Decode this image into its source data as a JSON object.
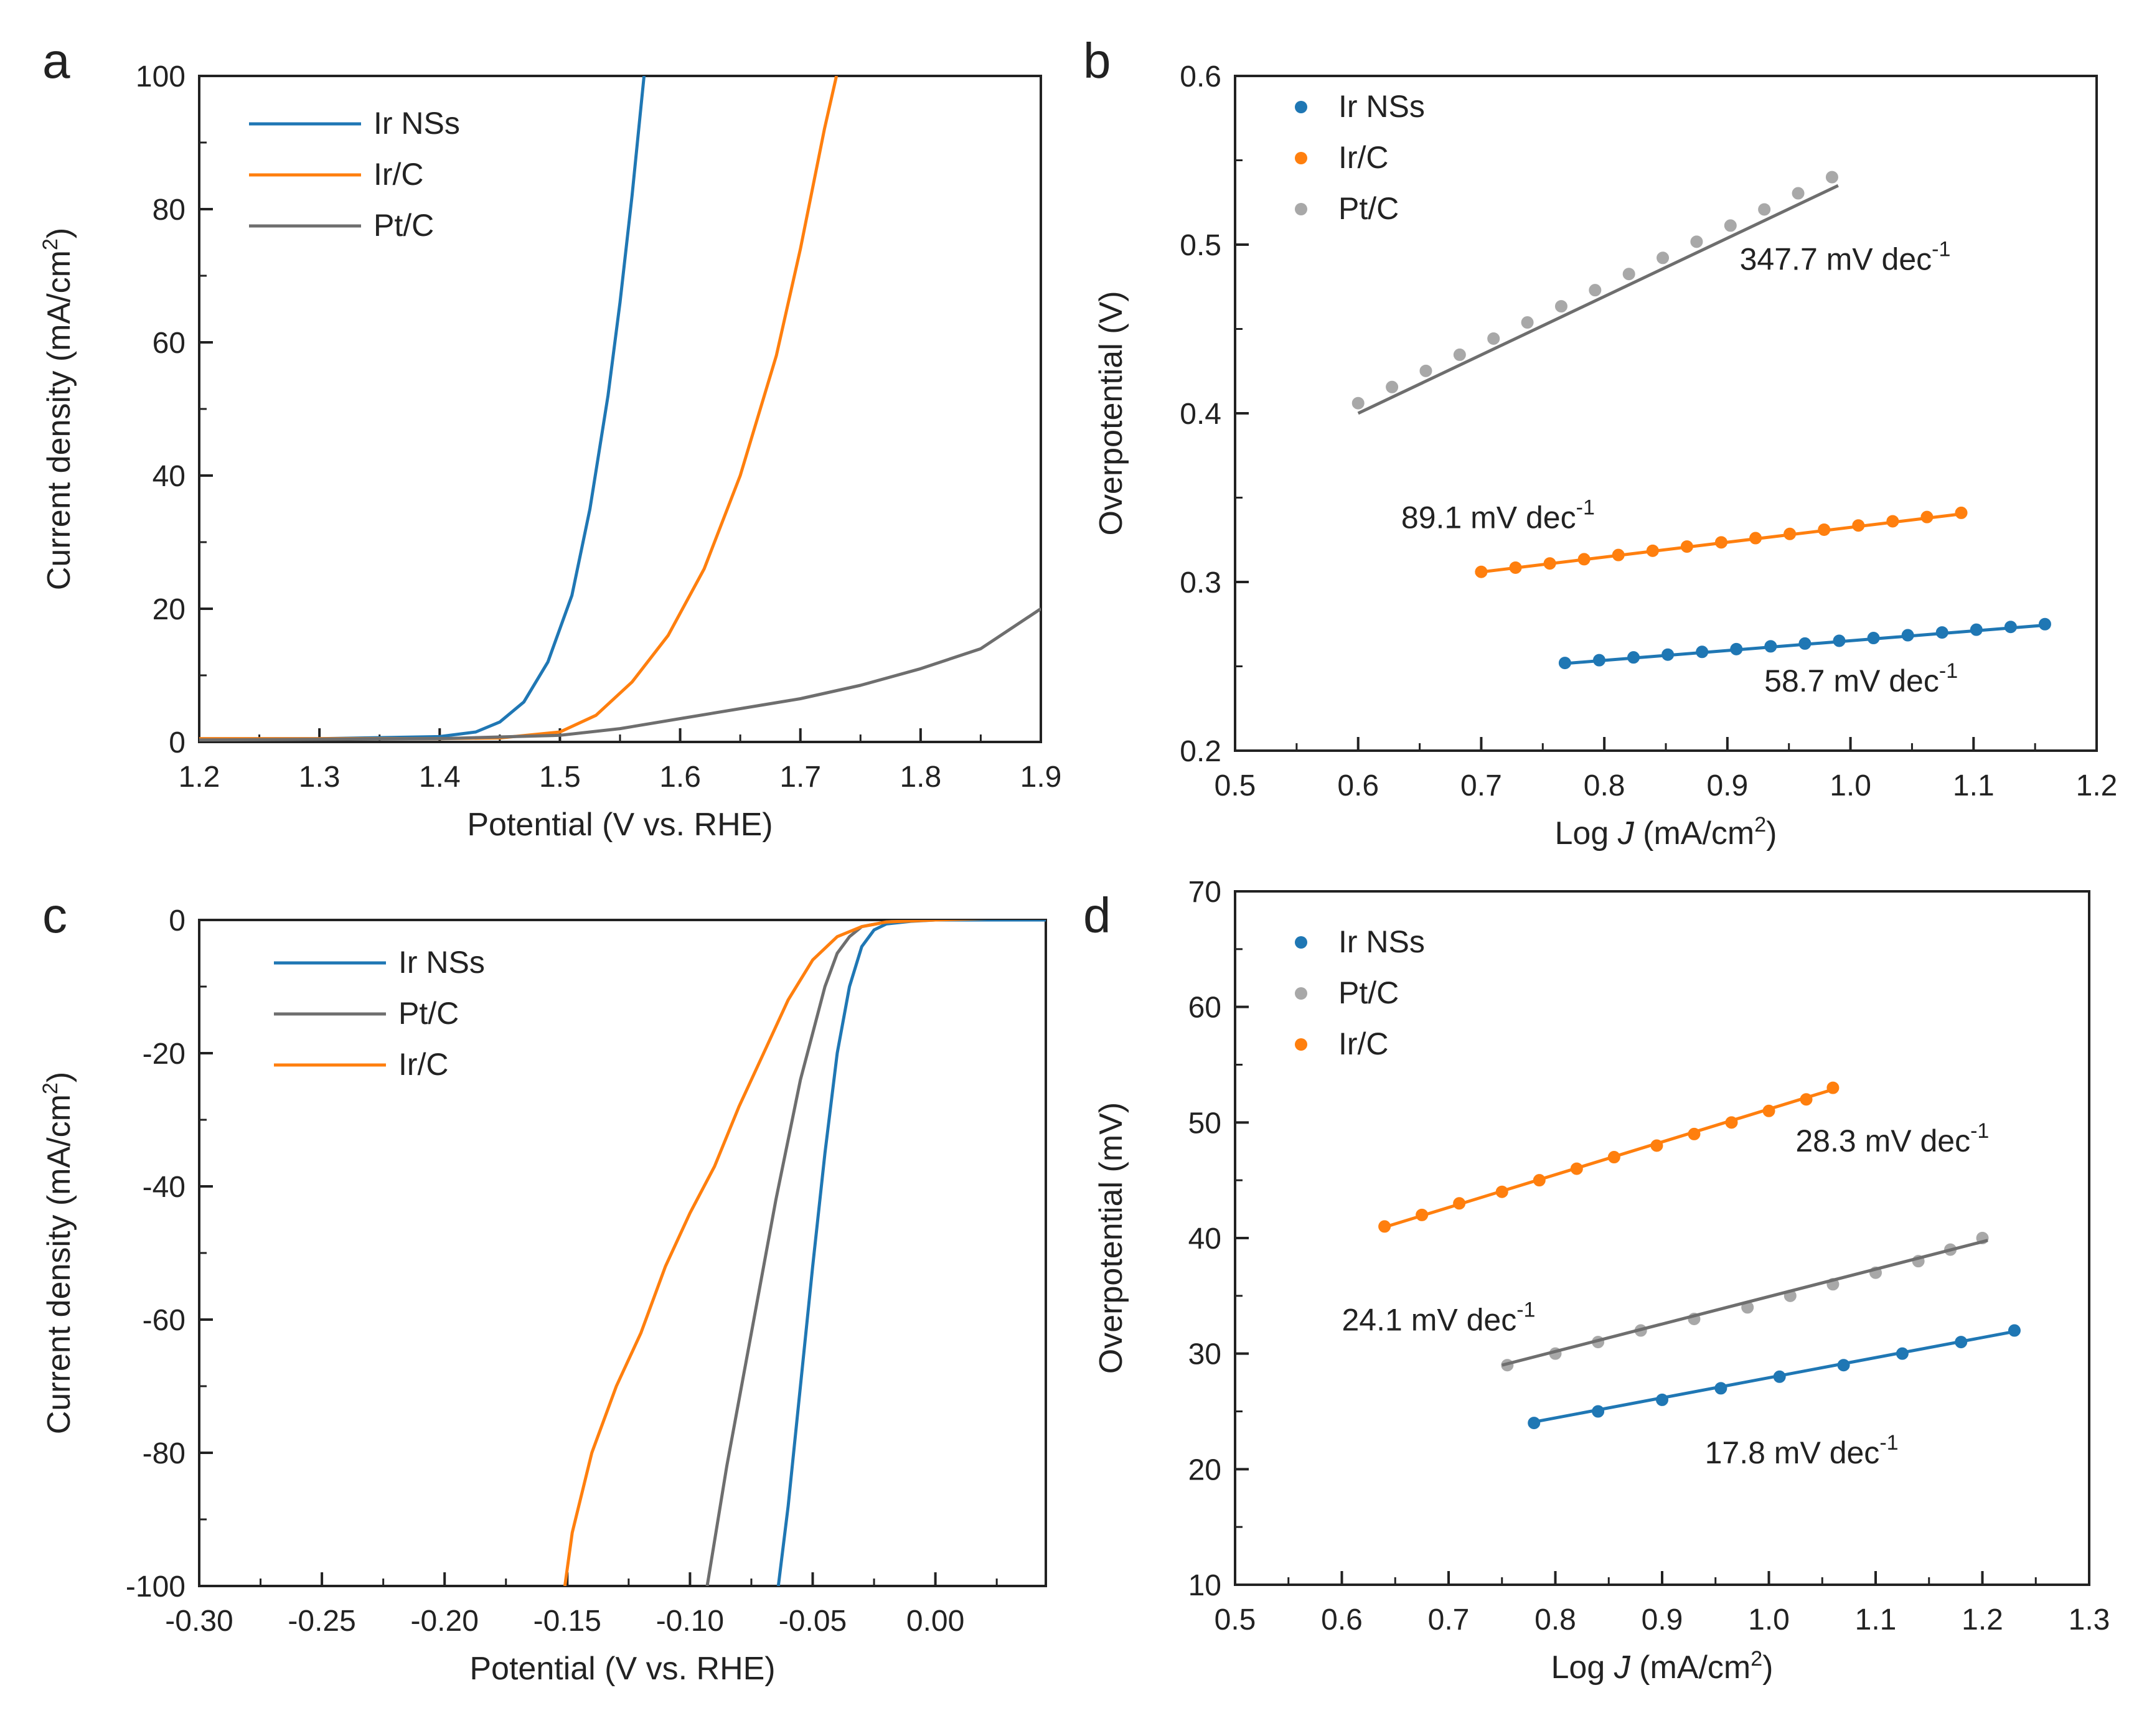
{
  "colors": {
    "blue": "#1f77b4",
    "orange": "#ff7f0e",
    "gray": "#6e6e6e",
    "gray_pt": "#a8a8a8",
    "axis": "#222222"
  },
  "chart_data": [
    {
      "panel": "a",
      "type": "line",
      "xlabel": "Potential (V vs. RHE)",
      "ylabel_main": "Current density (mA/cm",
      "ylabel_sup": "2",
      "ylabel_end": ")",
      "xlim": [
        1.2,
        1.9
      ],
      "ylim": [
        0,
        100
      ],
      "xticks": [
        1.2,
        1.3,
        1.4,
        1.5,
        1.6,
        1.7,
        1.8,
        1.9
      ],
      "xtick_labels": [
        "1.2",
        "1.3",
        "1.4",
        "1.5",
        "1.6",
        "1.7",
        "1.8",
        "1.9"
      ],
      "yticks": [
        0,
        20,
        40,
        60,
        80,
        100
      ],
      "ytick_labels": [
        "0",
        "20",
        "40",
        "60",
        "80",
        "100"
      ],
      "legend": [
        "Ir NSs",
        "Ir/C",
        "Pt/C"
      ],
      "series": [
        {
          "name": "Ir NSs",
          "color": "blue",
          "x": [
            1.2,
            1.3,
            1.4,
            1.43,
            1.45,
            1.47,
            1.49,
            1.51,
            1.525,
            1.54,
            1.55,
            1.56,
            1.57
          ],
          "y": [
            0.5,
            0.5,
            0.8,
            1.5,
            3,
            6,
            12,
            22,
            35,
            52,
            66,
            82,
            100
          ]
        },
        {
          "name": "Ir/C",
          "color": "orange",
          "x": [
            1.2,
            1.4,
            1.45,
            1.5,
            1.53,
            1.56,
            1.59,
            1.62,
            1.65,
            1.68,
            1.7,
            1.72,
            1.73
          ],
          "y": [
            0.5,
            0.5,
            0.6,
            1.5,
            4,
            9,
            16,
            26,
            40,
            58,
            74,
            92,
            100
          ]
        },
        {
          "name": "Pt/C",
          "color": "gray",
          "x": [
            1.2,
            1.4,
            1.5,
            1.55,
            1.6,
            1.65,
            1.7,
            1.75,
            1.8,
            1.85,
            1.9
          ],
          "y": [
            0.3,
            0.5,
            1,
            2,
            3.5,
            5,
            6.5,
            8.5,
            11,
            14,
            20
          ]
        }
      ]
    },
    {
      "panel": "b",
      "type": "scatter",
      "xlabel_pre": "Log ",
      "xlabel_ital": "J",
      "xlabel_post": " (mA/cm",
      "xlabel_sup": "2",
      "xlabel_end": ")",
      "ylabel": "Overpotential (V)",
      "xlim": [
        0.5,
        1.2
      ],
      "ylim": [
        0.2,
        0.6
      ],
      "xticks": [
        0.5,
        0.6,
        0.7,
        0.8,
        0.9,
        1.0,
        1.1,
        1.2
      ],
      "xtick_labels": [
        "0.5",
        "0.6",
        "0.7",
        "0.8",
        "0.9",
        "1.0",
        "1.1",
        "1.2"
      ],
      "yticks": [
        0.2,
        0.3,
        0.4,
        0.5,
        0.6
      ],
      "ytick_labels": [
        "0.2",
        "0.3",
        "0.4",
        "0.5",
        "0.6"
      ],
      "legend": [
        "Ir NSs",
        "Ir/C",
        "Pt/C"
      ],
      "series": [
        {
          "name": "Ir NSs",
          "color": "blue",
          "x_start": 0.768,
          "x_end": 1.158,
          "n": 15,
          "y_start": 0.252,
          "y_end": 0.275,
          "fit": [
            0.765,
            1.16,
            0.2515,
            0.2745
          ]
        },
        {
          "name": "Ir/C",
          "color": "orange",
          "x_start": 0.7,
          "x_end": 1.09,
          "n": 15,
          "y_start": 0.306,
          "y_end": 0.341,
          "fit": [
            0.695,
            1.092,
            0.3055,
            0.3405
          ]
        },
        {
          "name": "Pt/C",
          "color": "gray",
          "x_start": 0.6,
          "x_end": 0.985,
          "n": 15,
          "y_start": 0.406,
          "y_end": 0.54,
          "fit": [
            0.6,
            0.99,
            0.4,
            0.535
          ]
        }
      ],
      "annotations": [
        {
          "text": "347.7 mV dec",
          "sup": "-1",
          "x": 0.91,
          "y": 0.485
        },
        {
          "text": "89.1 mV dec",
          "sup": "-1",
          "x": 0.635,
          "y": 0.332
        },
        {
          "text": "58.7 mV dec",
          "sup": "-1",
          "x": 0.93,
          "y": 0.235
        }
      ]
    },
    {
      "panel": "c",
      "type": "line",
      "xlabel": "Potential (V vs. RHE)",
      "ylabel_main": "Current density (mA/cm",
      "ylabel_sup": "2",
      "ylabel_end": ")",
      "xlim": [
        -0.3,
        0.045
      ],
      "ylim": [
        -100,
        0
      ],
      "xticks": [
        -0.3,
        -0.25,
        -0.2,
        -0.15,
        -0.1,
        -0.05,
        0.0
      ],
      "xtick_labels": [
        "-0.30",
        "-0.25",
        "-0.20",
        "-0.15",
        "-0.10",
        "-0.05",
        "0.00"
      ],
      "yticks": [
        -100,
        -80,
        -60,
        -40,
        -20,
        0
      ],
      "ytick_labels": [
        "-100",
        "-80",
        "-60",
        "-40",
        "-20",
        "0"
      ],
      "legend": [
        "Ir NSs",
        "Pt/C",
        "Ir/C"
      ],
      "series": [
        {
          "name": "Ir NSs",
          "color": "blue",
          "x": [
            -0.064,
            -0.06,
            -0.055,
            -0.05,
            -0.045,
            -0.04,
            -0.035,
            -0.03,
            -0.025,
            -0.02,
            -0.01,
            0.0,
            0.045
          ],
          "y": [
            -100,
            -88,
            -70,
            -52,
            -35,
            -20,
            -10,
            -4,
            -1.5,
            -0.6,
            -0.2,
            0,
            0
          ]
        },
        {
          "name": "Pt/C",
          "color": "gray",
          "x": [
            -0.093,
            -0.085,
            -0.075,
            -0.065,
            -0.055,
            -0.045,
            -0.04,
            -0.035,
            -0.03,
            -0.02,
            -0.01,
            0.0,
            0.045
          ],
          "y": [
            -100,
            -82,
            -62,
            -42,
            -24,
            -10,
            -5,
            -2.5,
            -1,
            -0.3,
            0,
            0.5,
            1
          ]
        },
        {
          "name": "Ir/C",
          "color": "orange",
          "x": [
            -0.151,
            -0.148,
            -0.14,
            -0.13,
            -0.12,
            -0.11,
            -0.1,
            -0.09,
            -0.08,
            -0.07,
            -0.06,
            -0.05,
            -0.04,
            -0.03,
            -0.02,
            0.0,
            0.045
          ],
          "y": [
            -100,
            -92,
            -80,
            -70,
            -62,
            -52,
            -44,
            -37,
            -28,
            -20,
            -12,
            -6,
            -2.5,
            -1,
            -0.3,
            0,
            0.5
          ]
        }
      ]
    },
    {
      "panel": "d",
      "type": "scatter",
      "xlabel_pre": "Log ",
      "xlabel_ital": "J",
      "xlabel_post": " (mA/cm",
      "xlabel_sup": "2",
      "xlabel_end": ")",
      "ylabel": "Overpotential (mV)",
      "xlim": [
        0.5,
        1.3
      ],
      "ylim": [
        10,
        70
      ],
      "xticks": [
        0.5,
        0.6,
        0.7,
        0.8,
        0.9,
        1.0,
        1.1,
        1.2,
        1.3
      ],
      "xtick_labels": [
        "0.5",
        "0.6",
        "0.7",
        "0.8",
        "0.9",
        "1.0",
        "1.1",
        "1.2",
        "1.3"
      ],
      "yticks": [
        10,
        20,
        30,
        40,
        50,
        60,
        70
      ],
      "ytick_labels": [
        "10",
        "20",
        "30",
        "40",
        "50",
        "60",
        "70"
      ],
      "legend": [
        "Ir NSs",
        "Pt/C",
        "Ir/C"
      ],
      "series": [
        {
          "name": "Ir NSs",
          "color": "blue",
          "x": [
            0.78,
            0.84,
            0.9,
            0.955,
            1.01,
            1.07,
            1.125,
            1.18,
            1.23
          ],
          "y": [
            24,
            25,
            26,
            27,
            28,
            29,
            30,
            31,
            32
          ],
          "fit": [
            0.775,
            1.235,
            24.0,
            32.0
          ]
        },
        {
          "name": "Pt/C",
          "color": "gray",
          "x": [
            0.755,
            0.8,
            0.84,
            0.88,
            0.93,
            0.98,
            1.02,
            1.06,
            1.1,
            1.14,
            1.17,
            1.2
          ],
          "y": [
            29,
            30,
            31,
            32,
            33,
            34,
            35,
            36,
            37,
            38,
            39,
            40
          ],
          "fit": [
            0.75,
            1.205,
            29.0,
            39.8
          ]
        },
        {
          "name": "Ir/C",
          "color": "orange",
          "x": [
            0.64,
            0.675,
            0.71,
            0.75,
            0.785,
            0.82,
            0.855,
            0.895,
            0.93,
            0.965,
            1.0,
            1.035,
            1.06
          ],
          "y": [
            41,
            42,
            43,
            44,
            45,
            46,
            47,
            48,
            49,
            50,
            51,
            52,
            53
          ],
          "fit": [
            0.635,
            1.065,
            40.8,
            53.0
          ]
        }
      ],
      "annotations": [
        {
          "text": "28.3 mV dec",
          "sup": "-1",
          "x": 1.025,
          "y": 47.5
        },
        {
          "text": "24.1 mV dec",
          "sup": "-1",
          "x": 0.6,
          "y": 32.0
        },
        {
          "text": "17.8 mV dec",
          "sup": "-1",
          "x": 0.94,
          "y": 20.5
        }
      ]
    }
  ]
}
